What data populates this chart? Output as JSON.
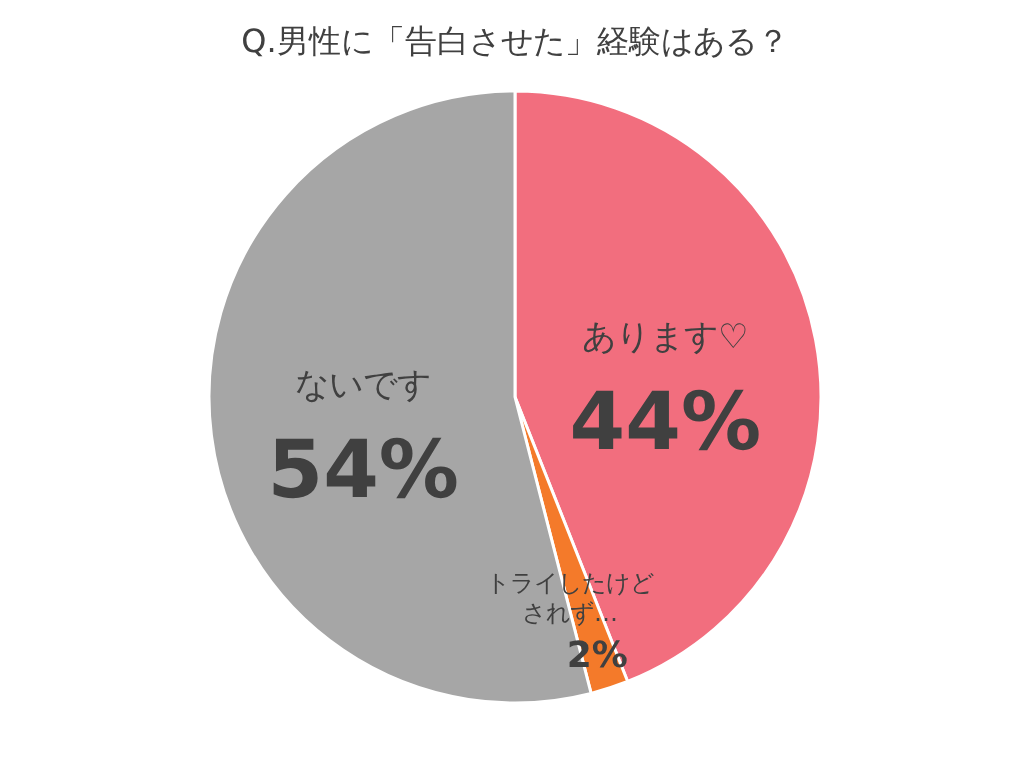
{
  "chart_data": {
    "type": "pie",
    "title": "Q.男性に「告白させた」経験はある？",
    "categories": [
      "あります♡",
      "トライしたけどされず…",
      "ないです"
    ],
    "values": [
      44,
      2,
      54
    ],
    "colors": [
      "#f26e7e",
      "#f47a2a",
      "#a6a6a6"
    ],
    "value_labels": [
      "44%",
      "2%",
      "54%"
    ]
  }
}
